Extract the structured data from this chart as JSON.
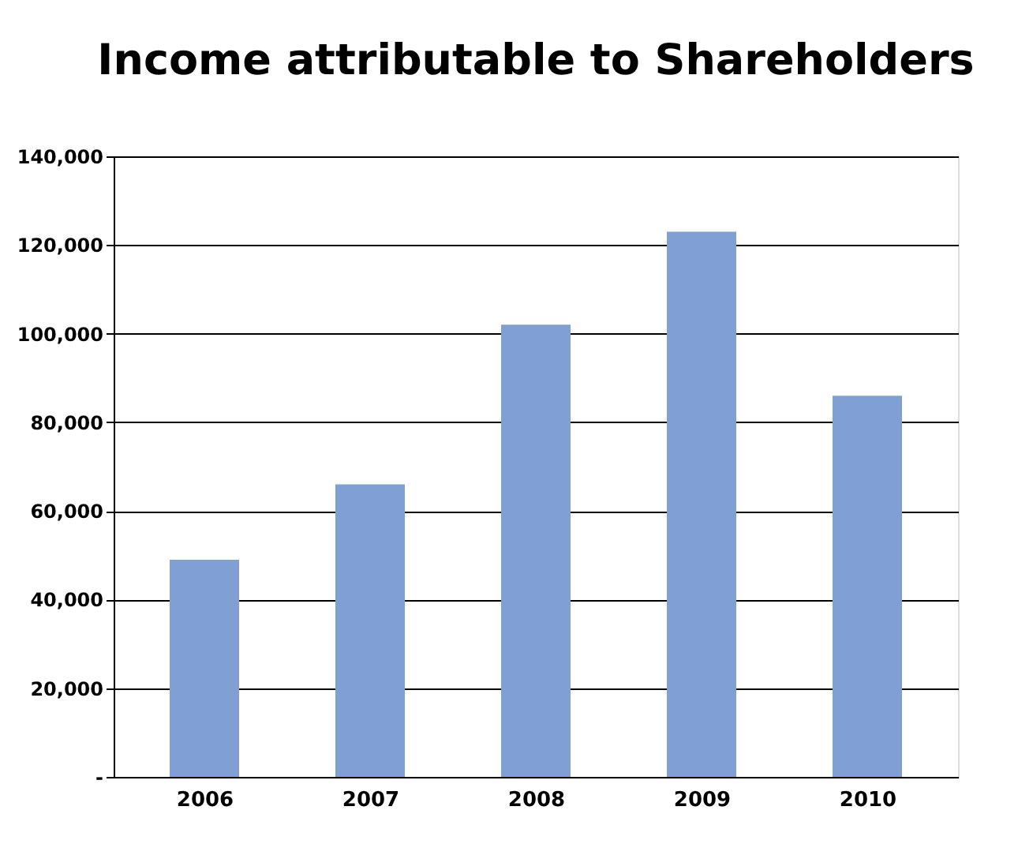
{
  "chart_data": {
    "type": "bar",
    "title": "Income attributable to Shareholders",
    "categories": [
      "2006",
      "2007",
      "2008",
      "2009",
      "2010"
    ],
    "values": [
      49000,
      66000,
      102000,
      123000,
      86000
    ],
    "color": "#7f9fd5",
    "ylim": [
      0,
      140000
    ],
    "yticks": [
      {
        "value": 0,
        "label": "-"
      },
      {
        "value": 20000,
        "label": "20,000"
      },
      {
        "value": 40000,
        "label": "40,000"
      },
      {
        "value": 60000,
        "label": "60,000"
      },
      {
        "value": 80000,
        "label": "80,000"
      },
      {
        "value": 100000,
        "label": "100,000"
      },
      {
        "value": 120000,
        "label": "120,000"
      },
      {
        "value": 140000,
        "label": "140,000"
      }
    ],
    "grid": "y"
  }
}
